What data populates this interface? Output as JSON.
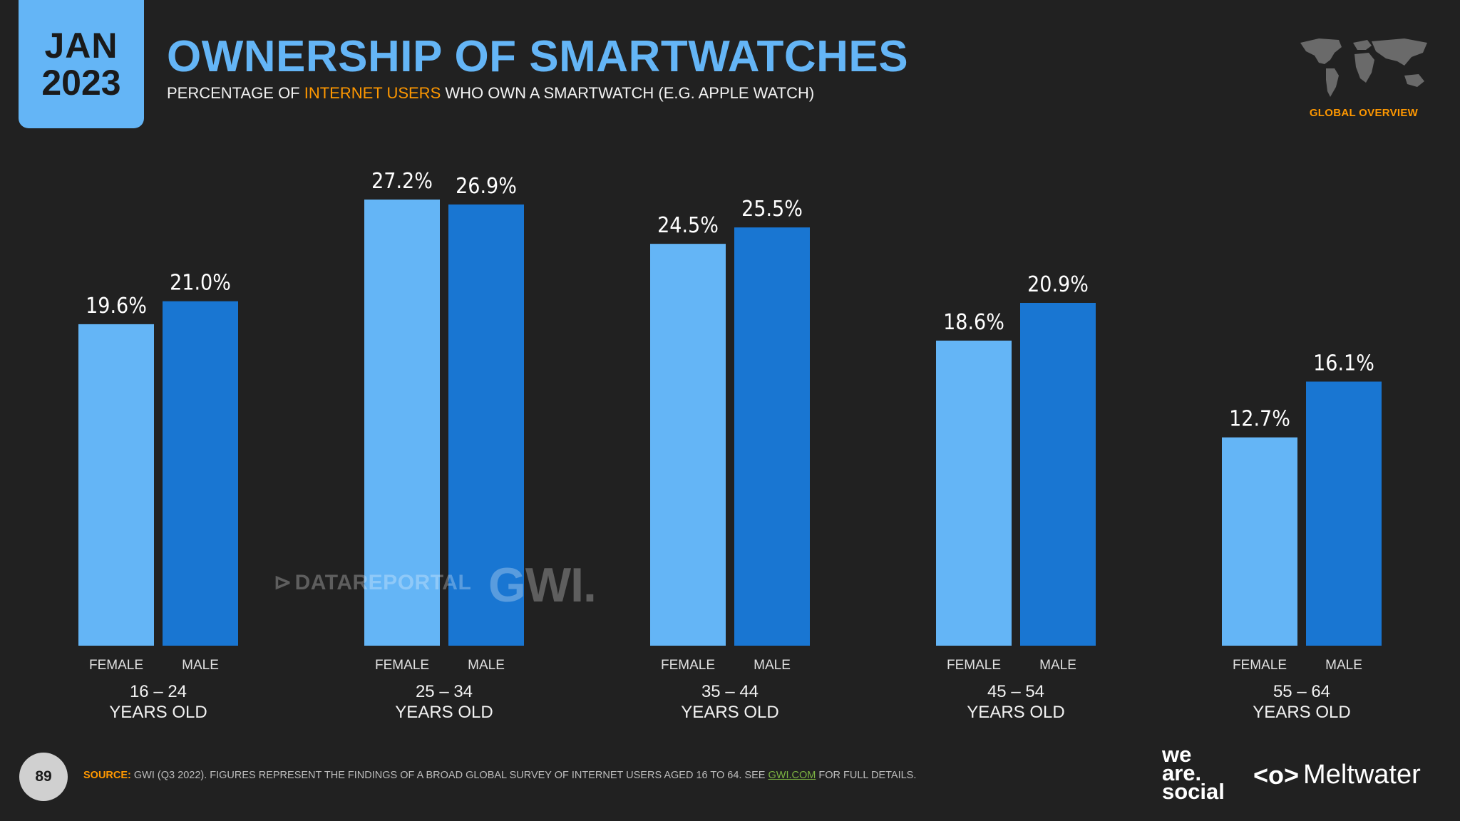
{
  "header": {
    "month": "JAN",
    "year": "2023",
    "title": "OWNERSHIP OF SMARTWATCHES",
    "subtitle_pre": "PERCENTAGE OF ",
    "subtitle_highlight": "INTERNET USERS",
    "subtitle_post": " WHO OWN A SMARTWATCH (E.G. APPLE WATCH)",
    "section_label": "GLOBAL OVERVIEW"
  },
  "watermarks": {
    "datareportal": "DATAREPORTAL",
    "gwi": "GWI."
  },
  "footer": {
    "page_number": "89",
    "source_label": "SOURCE:",
    "source_text": " GWI (Q3 2022). FIGURES REPRESENT THE FINDINGS OF A BROAD GLOBAL SURVEY OF INTERNET USERS AGED 16 TO 64. SEE ",
    "source_link": "GWI.COM",
    "source_tail": " FOR FULL DETAILS.",
    "brand_1_line1": "we",
    "brand_1_line2": "are.",
    "brand_1_line3": "social",
    "brand_2_icon": "<o>",
    "brand_2": "Meltwater"
  },
  "colors": {
    "female": "#64b5f6",
    "male": "#1976d2",
    "accent": "#ff9800",
    "background": "#212121"
  },
  "chart_data": {
    "type": "bar",
    "categories": [
      [
        "16 – 24",
        "YEARS OLD"
      ],
      [
        "25 – 34",
        "YEARS OLD"
      ],
      [
        "35 – 44",
        "YEARS OLD"
      ],
      [
        "45 – 54",
        "YEARS OLD"
      ],
      [
        "55 – 64",
        "YEARS OLD"
      ]
    ],
    "series": [
      {
        "name": "FEMALE",
        "values": [
          19.6,
          27.2,
          24.5,
          18.6,
          12.7
        ]
      },
      {
        "name": "MALE",
        "values": [
          21.0,
          26.9,
          25.5,
          20.9,
          16.1
        ]
      }
    ],
    "value_labels": [
      [
        "19.6%",
        "27.2%",
        "24.5%",
        "18.6%",
        "12.7%"
      ],
      [
        "21.0%",
        "26.9%",
        "25.5%",
        "20.9%",
        "16.1%"
      ]
    ],
    "ylim": [
      0,
      27.2
    ]
  }
}
